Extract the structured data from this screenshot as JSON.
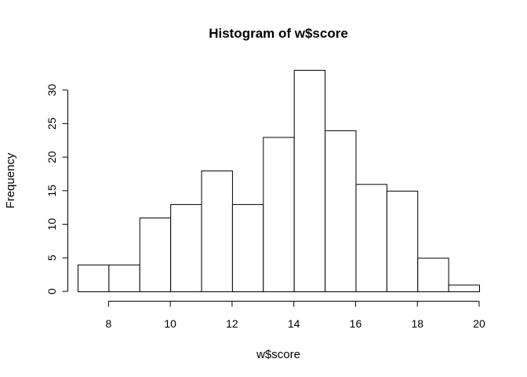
{
  "chart_data": {
    "type": "bar",
    "title": "Histogram of w$score",
    "xlabel": "w$score",
    "ylabel": "Frequency",
    "bin_edges": [
      7,
      8,
      9,
      10,
      11,
      12,
      13,
      14,
      15,
      16,
      17,
      18,
      19,
      20
    ],
    "values": [
      4,
      4,
      11,
      13,
      18,
      13,
      23,
      33,
      24,
      16,
      15,
      5,
      1
    ],
    "xlim": [
      7,
      20
    ],
    "ylim": [
      0,
      33
    ],
    "x_ticks": [
      8,
      10,
      12,
      14,
      16,
      18,
      20
    ],
    "y_ticks": [
      0,
      5,
      10,
      15,
      20,
      25,
      30
    ],
    "grid": false,
    "colors": {
      "bar_fill": "#ffffff",
      "bar_stroke": "#000000"
    }
  }
}
